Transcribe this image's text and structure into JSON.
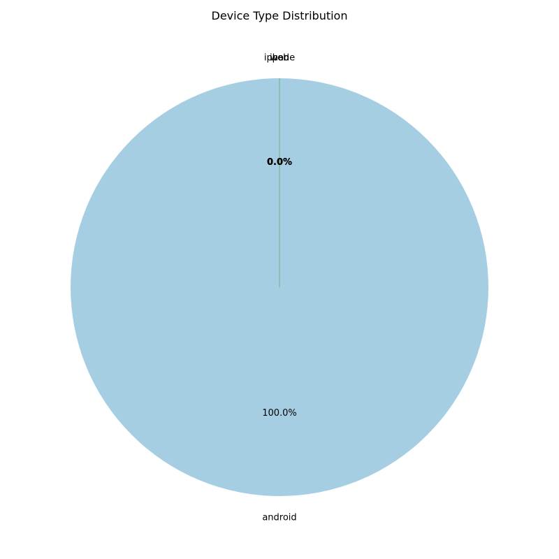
{
  "chart_data": {
    "type": "pie",
    "title": "Device Type Distribution",
    "slices": [
      {
        "label": "android",
        "value": 100.0,
        "pct_label": "100.0%",
        "color": "#a6cee3"
      },
      {
        "label": "iphone",
        "value": 0.0,
        "pct_label": "0.0%",
        "color": "#1f78b4"
      },
      {
        "label": "ipad",
        "value": 0.0,
        "pct_label": "0.0%",
        "color": "#b2df8a"
      },
      {
        "label": "web",
        "value": 0.0,
        "pct_label": "0.0%",
        "color": "#33a02c"
      }
    ],
    "start_angle_deg": 90,
    "direction": "counterclockwise",
    "legend": "none"
  }
}
